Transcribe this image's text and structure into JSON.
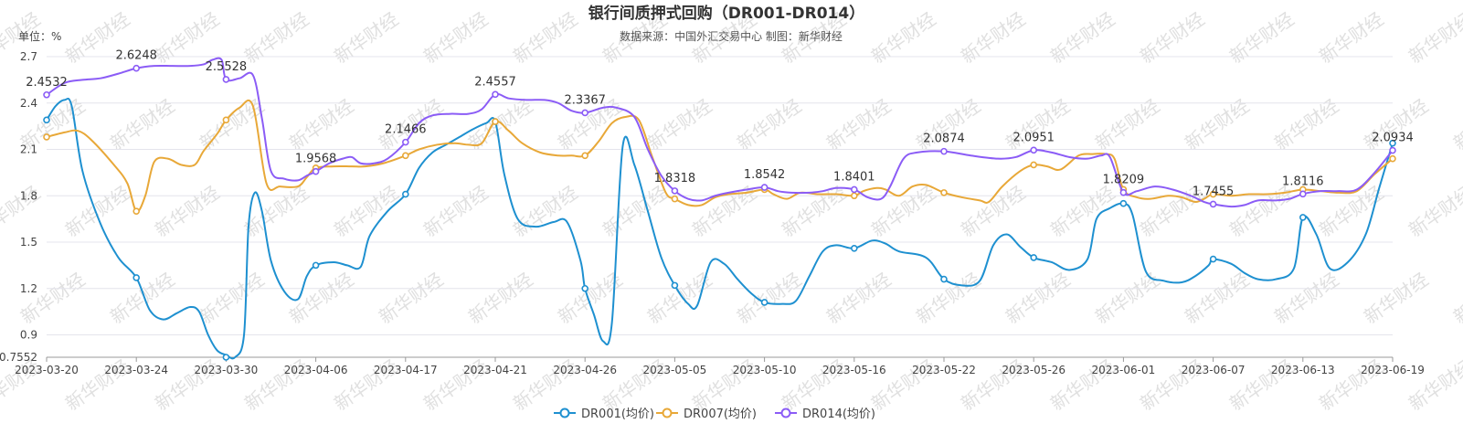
{
  "chart_data": {
    "type": "line",
    "title": "银行间质押式回购（DR001-DR014）",
    "subtitle": "数据来源：中国外汇交易中心     制图：新华财经",
    "unit_label": "单位：%",
    "watermark": "新华财经",
    "ylim": [
      0.7552,
      2.7
    ],
    "y_ticks": [
      "2.7",
      "2.4",
      "2.1",
      "1.8",
      "1.5",
      "1.2",
      "0.9",
      "0.7552"
    ],
    "y_tick_values": [
      2.7,
      2.4,
      2.1,
      1.8,
      1.5,
      1.2,
      0.9,
      0.7552
    ],
    "x_ticks": [
      "2023-03-20",
      "2023-03-24",
      "2023-03-30",
      "2023-04-06",
      "2023-04-17",
      "2023-04-21",
      "2023-04-26",
      "2023-05-05",
      "2023-05-10",
      "2023-05-16",
      "2023-05-22",
      "2023-05-26",
      "2023-06-01",
      "2023-06-07",
      "2023-06-13",
      "2023-06-19"
    ],
    "grid": true,
    "legend_position": "bottom",
    "series": [
      {
        "name": "DR001(均价)",
        "color": "#1e90d0",
        "marker_values": [
          2.29,
          1.27,
          0.7552,
          1.35,
          1.81,
          2.28,
          1.2,
          1.22,
          1.11,
          1.46,
          1.26,
          1.4,
          1.75,
          1.39,
          1.66,
          2.14
        ],
        "curve": [
          [
            0,
            2.29
          ],
          [
            0.1,
            2.38
          ],
          [
            0.2,
            2.42
          ],
          [
            0.28,
            2.38
          ],
          [
            0.4,
            1.96
          ],
          [
            0.6,
            1.62
          ],
          [
            0.8,
            1.4
          ],
          [
            1,
            1.27
          ],
          [
            1.15,
            1.06
          ],
          [
            1.3,
            1.0
          ],
          [
            1.45,
            1.04
          ],
          [
            1.6,
            1.08
          ],
          [
            1.7,
            1.05
          ],
          [
            1.8,
            0.9
          ],
          [
            1.9,
            0.8
          ],
          [
            2,
            0.77
          ],
          [
            2.1,
            0.7552
          ],
          [
            2.2,
            0.9
          ],
          [
            2.25,
            1.6
          ],
          [
            2.32,
            1.82
          ],
          [
            2.4,
            1.7
          ],
          [
            2.5,
            1.38
          ],
          [
            2.65,
            1.18
          ],
          [
            2.8,
            1.13
          ],
          [
            2.9,
            1.28
          ],
          [
            3,
            1.35
          ],
          [
            3.2,
            1.37
          ],
          [
            3.35,
            1.35
          ],
          [
            3.5,
            1.34
          ],
          [
            3.6,
            1.54
          ],
          [
            3.8,
            1.7
          ],
          [
            4,
            1.81
          ],
          [
            4.15,
            1.98
          ],
          [
            4.3,
            2.08
          ],
          [
            4.45,
            2.13
          ],
          [
            4.6,
            2.18
          ],
          [
            4.75,
            2.23
          ],
          [
            4.9,
            2.27
          ],
          [
            5,
            2.28
          ],
          [
            5.1,
            1.94
          ],
          [
            5.25,
            1.65
          ],
          [
            5.45,
            1.6
          ],
          [
            5.65,
            1.63
          ],
          [
            5.8,
            1.63
          ],
          [
            5.95,
            1.38
          ],
          [
            6,
            1.2
          ],
          [
            6.1,
            1.03
          ],
          [
            6.2,
            0.86
          ],
          [
            6.3,
            0.98
          ],
          [
            6.42,
            2.12
          ],
          [
            6.55,
            2.0
          ],
          [
            6.7,
            1.7
          ],
          [
            6.85,
            1.4
          ],
          [
            7,
            1.22
          ],
          [
            7.15,
            1.1
          ],
          [
            7.25,
            1.09
          ],
          [
            7.4,
            1.37
          ],
          [
            7.55,
            1.36
          ],
          [
            7.7,
            1.26
          ],
          [
            7.85,
            1.17
          ],
          [
            8,
            1.11
          ],
          [
            8.2,
            1.1
          ],
          [
            8.35,
            1.12
          ],
          [
            8.5,
            1.28
          ],
          [
            8.65,
            1.44
          ],
          [
            8.8,
            1.48
          ],
          [
            9,
            1.46
          ],
          [
            9.2,
            1.51
          ],
          [
            9.35,
            1.49
          ],
          [
            9.5,
            1.44
          ],
          [
            9.8,
            1.4
          ],
          [
            10,
            1.26
          ],
          [
            10.2,
            1.22
          ],
          [
            10.4,
            1.25
          ],
          [
            10.55,
            1.48
          ],
          [
            10.7,
            1.55
          ],
          [
            10.85,
            1.47
          ],
          [
            11,
            1.4
          ],
          [
            11.2,
            1.37
          ],
          [
            11.4,
            1.32
          ],
          [
            11.6,
            1.39
          ],
          [
            11.7,
            1.65
          ],
          [
            11.85,
            1.72
          ],
          [
            12,
            1.75
          ],
          [
            12.1,
            1.68
          ],
          [
            12.25,
            1.31
          ],
          [
            12.45,
            1.25
          ],
          [
            12.65,
            1.24
          ],
          [
            12.8,
            1.28
          ],
          [
            12.95,
            1.35
          ],
          [
            13,
            1.39
          ],
          [
            13.2,
            1.36
          ],
          [
            13.35,
            1.3
          ],
          [
            13.5,
            1.26
          ],
          [
            13.7,
            1.26
          ],
          [
            13.9,
            1.33
          ],
          [
            14,
            1.66
          ],
          [
            14.15,
            1.55
          ],
          [
            14.3,
            1.33
          ],
          [
            14.5,
            1.37
          ],
          [
            14.7,
            1.55
          ],
          [
            14.85,
            1.85
          ],
          [
            15,
            2.14
          ]
        ]
      },
      {
        "name": "DR007(均价)",
        "color": "#e8a838",
        "marker_values": [
          2.18,
          1.7,
          2.29,
          1.98,
          2.06,
          2.28,
          2.06,
          1.78,
          1.84,
          1.8,
          1.82,
          2.0,
          1.84,
          1.81,
          1.84,
          2.04
        ],
        "curve": [
          [
            0,
            2.18
          ],
          [
            0.2,
            2.21
          ],
          [
            0.35,
            2.22
          ],
          [
            0.5,
            2.16
          ],
          [
            0.75,
            2.0
          ],
          [
            0.9,
            1.88
          ],
          [
            1,
            1.7
          ],
          [
            1.1,
            1.8
          ],
          [
            1.2,
            2.02
          ],
          [
            1.35,
            2.04
          ],
          [
            1.5,
            2.0
          ],
          [
            1.65,
            2.0
          ],
          [
            1.75,
            2.09
          ],
          [
            1.9,
            2.2
          ],
          [
            2,
            2.29
          ],
          [
            2.15,
            2.37
          ],
          [
            2.3,
            2.38
          ],
          [
            2.45,
            1.88
          ],
          [
            2.6,
            1.86
          ],
          [
            2.8,
            1.86
          ],
          [
            2.9,
            1.92
          ],
          [
            3,
            1.98
          ],
          [
            3.2,
            1.99
          ],
          [
            3.4,
            1.99
          ],
          [
            3.55,
            1.99
          ],
          [
            3.75,
            2.01
          ],
          [
            4,
            2.06
          ],
          [
            4.15,
            2.1
          ],
          [
            4.35,
            2.13
          ],
          [
            4.55,
            2.14
          ],
          [
            4.7,
            2.13
          ],
          [
            4.85,
            2.14
          ],
          [
            5,
            2.28
          ],
          [
            5.15,
            2.22
          ],
          [
            5.3,
            2.14
          ],
          [
            5.5,
            2.08
          ],
          [
            5.7,
            2.06
          ],
          [
            5.85,
            2.06
          ],
          [
            6,
            2.06
          ],
          [
            6.15,
            2.15
          ],
          [
            6.3,
            2.27
          ],
          [
            6.45,
            2.31
          ],
          [
            6.6,
            2.29
          ],
          [
            6.75,
            2.05
          ],
          [
            6.9,
            1.82
          ],
          [
            7,
            1.78
          ],
          [
            7.15,
            1.74
          ],
          [
            7.3,
            1.74
          ],
          [
            7.45,
            1.79
          ],
          [
            7.6,
            1.81
          ],
          [
            7.8,
            1.82
          ],
          [
            8,
            1.84
          ],
          [
            8.1,
            1.81
          ],
          [
            8.25,
            1.78
          ],
          [
            8.4,
            1.82
          ],
          [
            8.6,
            1.81
          ],
          [
            8.8,
            1.81
          ],
          [
            9,
            1.8
          ],
          [
            9.1,
            1.83
          ],
          [
            9.25,
            1.85
          ],
          [
            9.35,
            1.84
          ],
          [
            9.5,
            1.8
          ],
          [
            9.65,
            1.86
          ],
          [
            9.8,
            1.87
          ],
          [
            10,
            1.82
          ],
          [
            10.2,
            1.79
          ],
          [
            10.4,
            1.77
          ],
          [
            10.5,
            1.76
          ],
          [
            10.65,
            1.86
          ],
          [
            10.85,
            1.96
          ],
          [
            11,
            2.0
          ],
          [
            11.15,
            1.99
          ],
          [
            11.3,
            1.97
          ],
          [
            11.5,
            2.06
          ],
          [
            11.65,
            2.07
          ],
          [
            11.8,
            2.07
          ],
          [
            11.9,
            2.04
          ],
          [
            12,
            1.84
          ],
          [
            12.15,
            1.79
          ],
          [
            12.3,
            1.78
          ],
          [
            12.5,
            1.8
          ],
          [
            12.65,
            1.79
          ],
          [
            12.8,
            1.76
          ],
          [
            12.9,
            1.78
          ],
          [
            13,
            1.81
          ],
          [
            13.2,
            1.8
          ],
          [
            13.4,
            1.81
          ],
          [
            13.6,
            1.81
          ],
          [
            13.8,
            1.82
          ],
          [
            14,
            1.84
          ],
          [
            14.2,
            1.83
          ],
          [
            14.4,
            1.82
          ],
          [
            14.6,
            1.83
          ],
          [
            14.8,
            1.94
          ],
          [
            15,
            2.04
          ]
        ]
      },
      {
        "name": "DR014(均价)",
        "color": "#8b5cf6",
        "marker_values": [
          2.4532,
          2.6248,
          2.5528,
          1.9568,
          2.1466,
          2.4557,
          2.3367,
          1.8318,
          1.8542,
          1.8401,
          2.0874,
          2.0951,
          1.8209,
          1.7455,
          1.8116,
          2.0934
        ],
        "curve": [
          [
            0,
            2.4532
          ],
          [
            0.2,
            2.53
          ],
          [
            0.4,
            2.55
          ],
          [
            0.6,
            2.56
          ],
          [
            0.8,
            2.59
          ],
          [
            1,
            2.6248
          ],
          [
            1.2,
            2.64
          ],
          [
            1.4,
            2.64
          ],
          [
            1.6,
            2.64
          ],
          [
            1.75,
            2.65
          ],
          [
            1.85,
            2.68
          ],
          [
            1.95,
            2.68
          ],
          [
            2,
            2.5528
          ],
          [
            2.15,
            2.56
          ],
          [
            2.3,
            2.58
          ],
          [
            2.4,
            2.3
          ],
          [
            2.5,
            1.96
          ],
          [
            2.65,
            1.91
          ],
          [
            2.8,
            1.9
          ],
          [
            2.9,
            1.93
          ],
          [
            3,
            1.9568
          ],
          [
            3.15,
            2.01
          ],
          [
            3.3,
            2.04
          ],
          [
            3.4,
            2.05
          ],
          [
            3.5,
            2.01
          ],
          [
            3.65,
            2.01
          ],
          [
            3.8,
            2.04
          ],
          [
            4,
            2.1466
          ],
          [
            4.15,
            2.27
          ],
          [
            4.3,
            2.32
          ],
          [
            4.5,
            2.33
          ],
          [
            4.7,
            2.33
          ],
          [
            4.85,
            2.36
          ],
          [
            5,
            2.4557
          ],
          [
            5.15,
            2.43
          ],
          [
            5.35,
            2.42
          ],
          [
            5.55,
            2.42
          ],
          [
            5.7,
            2.4
          ],
          [
            5.85,
            2.35
          ],
          [
            6,
            2.3367
          ],
          [
            6.2,
            2.37
          ],
          [
            6.35,
            2.37
          ],
          [
            6.55,
            2.31
          ],
          [
            6.7,
            2.1
          ],
          [
            6.85,
            1.93
          ],
          [
            7,
            1.8318
          ],
          [
            7.15,
            1.78
          ],
          [
            7.3,
            1.77
          ],
          [
            7.45,
            1.8
          ],
          [
            7.6,
            1.82
          ],
          [
            7.8,
            1.84
          ],
          [
            8,
            1.8542
          ],
          [
            8.15,
            1.83
          ],
          [
            8.3,
            1.82
          ],
          [
            8.5,
            1.82
          ],
          [
            8.65,
            1.83
          ],
          [
            8.8,
            1.85
          ],
          [
            9,
            1.8401
          ],
          [
            9.15,
            1.79
          ],
          [
            9.3,
            1.78
          ],
          [
            9.4,
            1.86
          ],
          [
            9.55,
            2.04
          ],
          [
            9.7,
            2.08
          ],
          [
            10,
            2.0874
          ],
          [
            10.3,
            2.06
          ],
          [
            10.6,
            2.04
          ],
          [
            10.8,
            2.05
          ],
          [
            11,
            2.0951
          ],
          [
            11.2,
            2.08
          ],
          [
            11.4,
            2.05
          ],
          [
            11.6,
            2.04
          ],
          [
            11.75,
            2.06
          ],
          [
            11.85,
            2.05
          ],
          [
            12,
            1.8209
          ],
          [
            12.15,
            1.83
          ],
          [
            12.35,
            1.86
          ],
          [
            12.55,
            1.84
          ],
          [
            12.75,
            1.8
          ],
          [
            12.9,
            1.76
          ],
          [
            13,
            1.7455
          ],
          [
            13.2,
            1.73
          ],
          [
            13.35,
            1.74
          ],
          [
            13.5,
            1.77
          ],
          [
            13.7,
            1.77
          ],
          [
            13.85,
            1.78
          ],
          [
            14,
            1.8116
          ],
          [
            14.2,
            1.83
          ],
          [
            14.4,
            1.83
          ],
          [
            14.6,
            1.84
          ],
          [
            14.8,
            1.95
          ],
          [
            15,
            2.0934
          ]
        ]
      }
    ],
    "data_labels": {
      "series_index": 2,
      "labels": [
        "2.4532",
        "2.6248",
        "2.5528",
        "1.9568",
        "2.1466",
        "2.4557",
        "2.3367",
        "1.8318",
        "1.8542",
        "1.8401",
        "2.0874",
        "2.0951",
        "1.8209",
        "1.7455",
        "1.8116",
        "2.0934"
      ]
    }
  }
}
